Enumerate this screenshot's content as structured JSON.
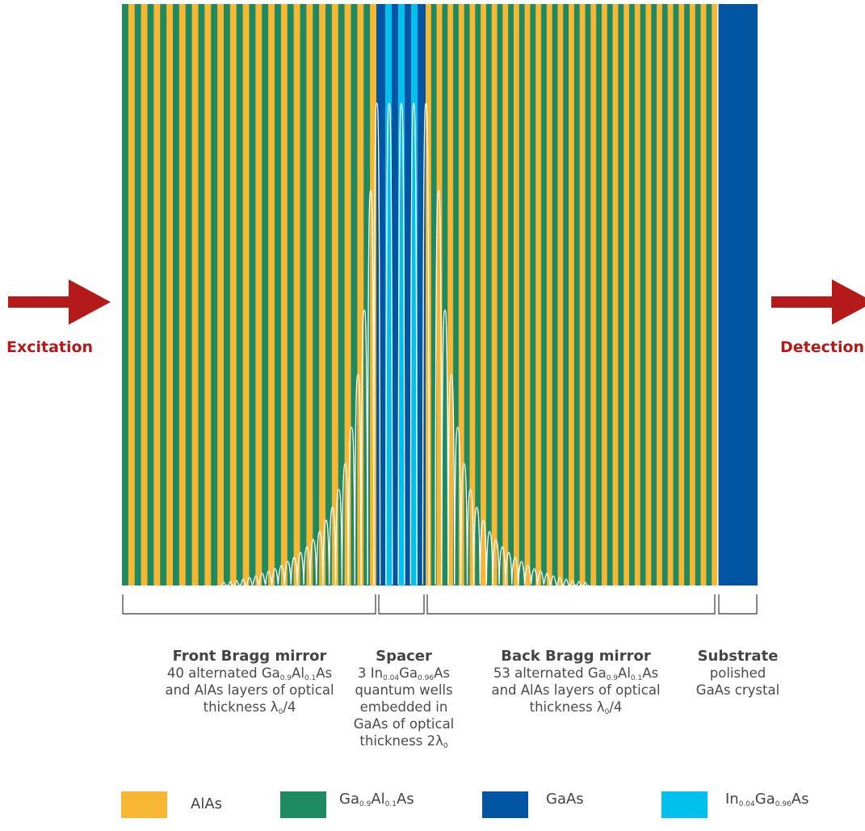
{
  "colors": {
    "alas": "#f7b733",
    "gaalas": "#1f8a62",
    "gaas": "#0255a3",
    "ingaas": "#00c0ee",
    "arrow": "#b51a1a",
    "bracket": "#555555",
    "field": "#ffffff"
  },
  "arrows": {
    "left_label": "Excitation",
    "right_label": "Detection"
  },
  "sections": {
    "front": {
      "title": "Front Bragg mirror",
      "line1_a": "40 alternated Ga",
      "line1_sub1": "0.9",
      "line1_b": "Al",
      "line1_sub2": "0.1",
      "line1_c": "As",
      "line2": "and AlAs layers of optical",
      "line3_a": "thickness λ",
      "line3_sub": "0",
      "line3_b": "/4"
    },
    "spacer": {
      "title": "Spacer",
      "line1_a": "3 In",
      "line1_sub1": "0.04",
      "line1_b": "Ga",
      "line1_sub2": "0.96",
      "line1_c": "As",
      "line2": "quantum wells",
      "line3": "embedded in",
      "line4": "GaAs of optical",
      "line5_a": "thickness 2λ",
      "line5_sub": "0"
    },
    "back": {
      "title": "Back Bragg mirror",
      "line1_a": "53 alternated Ga",
      "line1_sub1": "0.9",
      "line1_b": "Al",
      "line1_sub2": "0.1",
      "line1_c": "As",
      "line2": "and AlAs layers of optical",
      "line3_a": "thickness λ",
      "line3_sub": "0",
      "line3_b": "/4"
    },
    "substrate": {
      "title": "Substrate",
      "line1": "polished",
      "line2": "GaAs crystal"
    }
  },
  "legend": [
    {
      "key": "alas",
      "text_a": "AlAs",
      "sub1": "",
      "text_b": "",
      "sub2": "",
      "text_c": ""
    },
    {
      "key": "gaalas",
      "text_a": "Ga",
      "sub1": "0.9",
      "text_b": "Al",
      "sub2": "0.1",
      "text_c": "As"
    },
    {
      "key": "gaas",
      "text_a": "GaAs",
      "sub1": "",
      "text_b": "",
      "sub2": "",
      "text_c": ""
    },
    {
      "key": "ingaas",
      "text_a": "In",
      "sub1": "0.04",
      "text_b": "Ga",
      "sub2": "0.96",
      "text_c": "As"
    }
  ]
}
